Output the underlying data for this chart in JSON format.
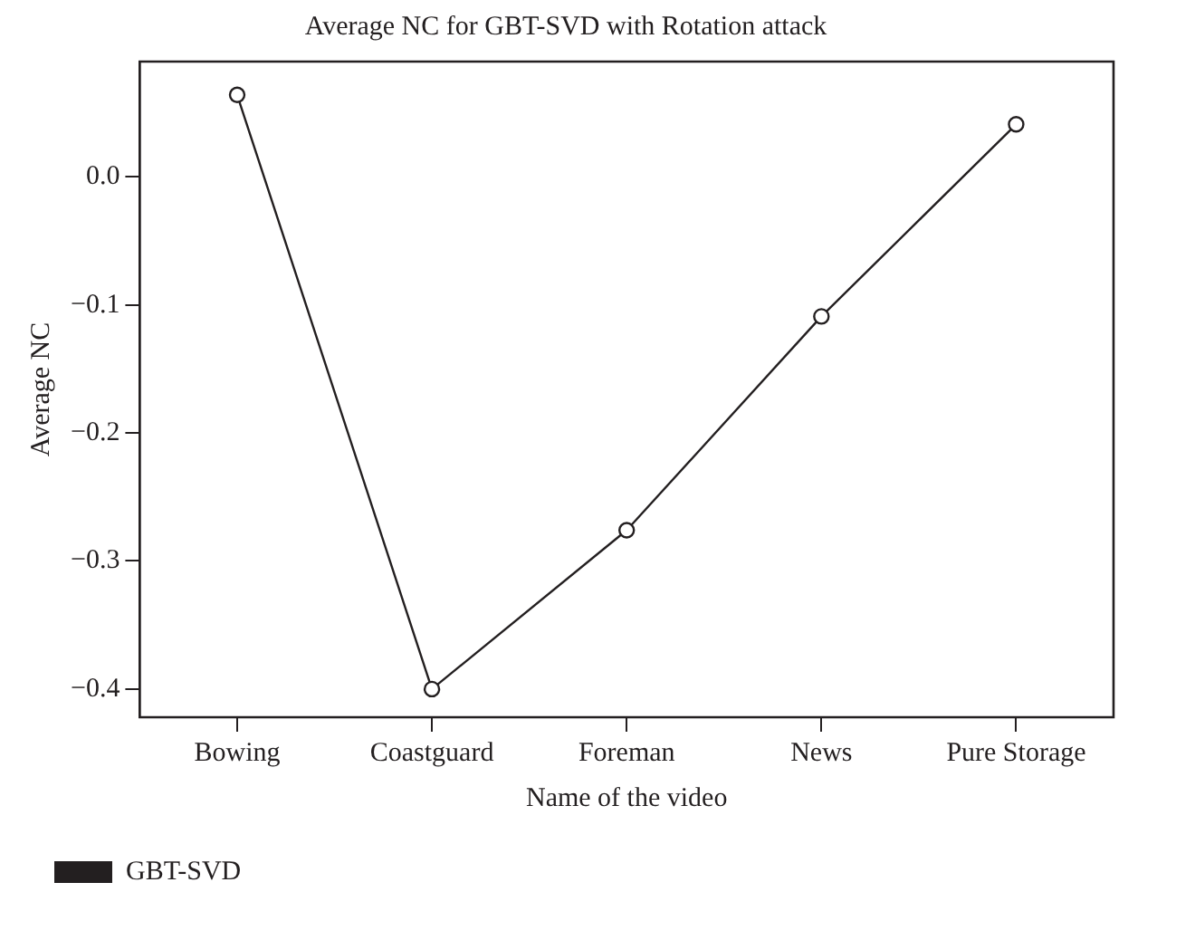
{
  "chart_data": {
    "type": "line",
    "title": "Average NC for GBT-SVD with Rotation attack",
    "xlabel": "Name of the video",
    "ylabel": "Average NC",
    "categories": [
      "Bowing",
      "Coastguard",
      "Foreman",
      "News",
      "Pure Storage"
    ],
    "series": [
      {
        "name": "GBT-SVD",
        "color": "#231f20",
        "values": [
          0.064,
          -0.4,
          -0.276,
          -0.109,
          0.041
        ]
      }
    ],
    "ylim": [
      -0.422,
      0.09
    ],
    "yticks": [
      {
        "value": -0.4,
        "label": "−0.4"
      },
      {
        "value": -0.3,
        "label": "−0.3"
      },
      {
        "value": -0.2,
        "label": "−0.2"
      },
      {
        "value": -0.1,
        "label": "−0.1"
      },
      {
        "value": 0,
        "label": "0.0"
      }
    ],
    "grid": false,
    "legend": "bottom left",
    "marker": "circle",
    "line_style": "solid"
  }
}
